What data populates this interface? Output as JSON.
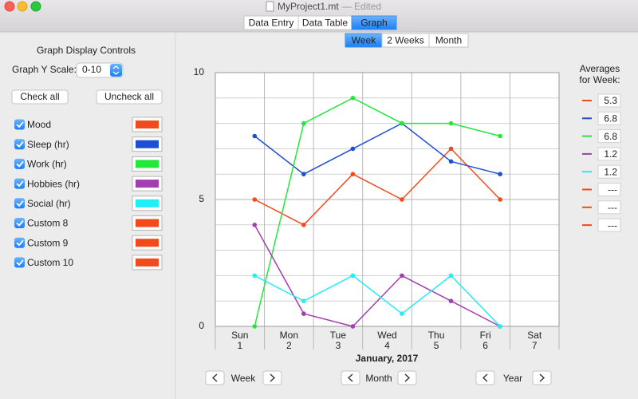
{
  "window": {
    "title": "MyProject1.mt",
    "status": "— Edited"
  },
  "tabs": [
    "Data Entry",
    "Data Table",
    "Graph"
  ],
  "selected_tab": 2,
  "controls": {
    "title": "Graph Display Controls",
    "y_scale_label": "Graph Y Scale:",
    "y_scale_value": "0-10",
    "check_all": "Check all",
    "uncheck_all": "Uncheck all"
  },
  "range_tabs": [
    "Week",
    "2 Weeks",
    "Month"
  ],
  "selected_range": 0,
  "chart_data": {
    "type": "line",
    "categories": [
      "Sun",
      "Mon",
      "Tue",
      "Wed",
      "Thu",
      "Fri",
      "Sat"
    ],
    "days": [
      1,
      2,
      3,
      4,
      5,
      6,
      7
    ],
    "x_label": "January, 2017",
    "ylim": [
      0,
      10
    ],
    "yticks": [
      0,
      5,
      10
    ],
    "minor_yticks": [
      1,
      2,
      3,
      4,
      6,
      7,
      8,
      9
    ],
    "grid": true,
    "legend_title": [
      "Averages",
      "for Week:"
    ],
    "series": [
      {
        "name": "Mood",
        "color": "#f24a1d",
        "values": [
          5,
          4,
          6,
          5,
          7,
          5,
          null
        ],
        "average": 5.3
      },
      {
        "name": "Sleep (hr)",
        "color": "#1d4fd4",
        "values": [
          7.5,
          6,
          7,
          8,
          6.5,
          6,
          null
        ],
        "average": 6.8
      },
      {
        "name": "Work (hr)",
        "color": "#22e83a",
        "values": [
          0,
          8,
          9,
          8,
          8,
          7.5,
          null
        ],
        "average": 6.8
      },
      {
        "name": "Hobbies (hr)",
        "color": "#a23fae",
        "values": [
          4,
          0.5,
          0,
          2,
          1,
          0,
          null
        ],
        "average": 1.2
      },
      {
        "name": "Social (hr)",
        "color": "#22eef5",
        "values": [
          2,
          1,
          2,
          0.5,
          2,
          0,
          null
        ],
        "average": 1.2
      },
      {
        "name": "Custom 8",
        "color": "#f24a1d",
        "values": [
          null,
          null,
          null,
          null,
          null,
          null,
          null
        ],
        "average": null,
        "average_label": "---"
      },
      {
        "name": "Custom 9",
        "color": "#f24a1d",
        "values": [
          null,
          null,
          null,
          null,
          null,
          null,
          null
        ],
        "average": null,
        "average_label": "---"
      },
      {
        "name": "Custom 10",
        "color": "#f24a1d",
        "values": [
          null,
          null,
          null,
          null,
          null,
          null,
          null
        ],
        "average": null,
        "average_label": "---"
      }
    ]
  },
  "navigation": [
    "Week",
    "Month",
    "Year"
  ]
}
